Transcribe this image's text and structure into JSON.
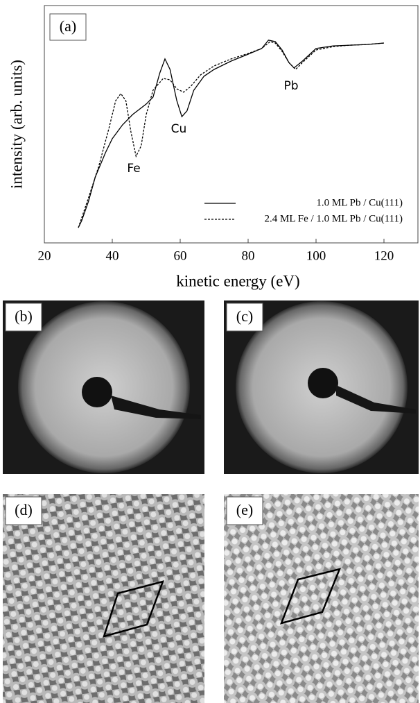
{
  "chart_data": {
    "type": "line",
    "panel_label": "(a)",
    "x_label": "kinetic energy (eV)",
    "y_label": "intensity (arb. units)",
    "xlim": [
      20,
      130
    ],
    "xticks": [
      20,
      40,
      60,
      80,
      100,
      120
    ],
    "ylim": [
      0,
      100
    ],
    "annotations": [
      "Fe",
      "Cu",
      "Pb"
    ],
    "legend": "lower right",
    "series": [
      {
        "name": "1.0 ML Pb / Cu(111)",
        "color": "#000000",
        "dash": "solid",
        "x": [
          30,
          31,
          33,
          35,
          38,
          40,
          43,
          46,
          50,
          52,
          54,
          55.5,
          57,
          59,
          60.5,
          62,
          64,
          67,
          70,
          75,
          80,
          84,
          86,
          88,
          90,
          92,
          93.5,
          96,
          100,
          105,
          110,
          115,
          120
        ],
        "values": [
          6.4,
          9.4,
          17.5,
          27.8,
          38.0,
          43.9,
          49.7,
          54.1,
          58.5,
          61.4,
          71.6,
          77.5,
          73.1,
          59.9,
          53.2,
          55.6,
          64.3,
          70.2,
          73.1,
          76.6,
          79.5,
          81.9,
          85.4,
          84.8,
          81.3,
          76.0,
          73.7,
          76.6,
          81.9,
          83.0,
          83.3,
          83.6,
          84.2
        ]
      },
      {
        "name": "2.4 ML Fe / 1.0 ML Pb / Cu(111)",
        "color": "#000000",
        "dash": "dashed",
        "x": [
          30,
          33,
          36,
          39,
          41,
          42.5,
          44,
          45.5,
          47,
          48.5,
          50,
          52,
          55,
          57,
          59,
          61,
          63,
          66,
          70,
          75,
          80,
          84,
          86.5,
          88,
          90,
          92,
          94,
          96,
          100,
          105,
          110,
          115,
          120
        ],
        "values": [
          6.4,
          19.0,
          32.2,
          48.2,
          59.9,
          62.9,
          59.9,
          46.8,
          36.5,
          40.9,
          54.1,
          64.3,
          69.3,
          68.7,
          64.9,
          63.5,
          65.8,
          70.8,
          74.6,
          77.5,
          79.8,
          81.9,
          84.8,
          84.2,
          80.7,
          76.0,
          73.1,
          76.0,
          81.3,
          82.7,
          83.3,
          83.6,
          84.2
        ]
      }
    ]
  },
  "panels": [
    {
      "label": "(b)"
    },
    {
      "label": "(c)"
    },
    {
      "label": "(d)"
    },
    {
      "label": "(e)"
    }
  ]
}
